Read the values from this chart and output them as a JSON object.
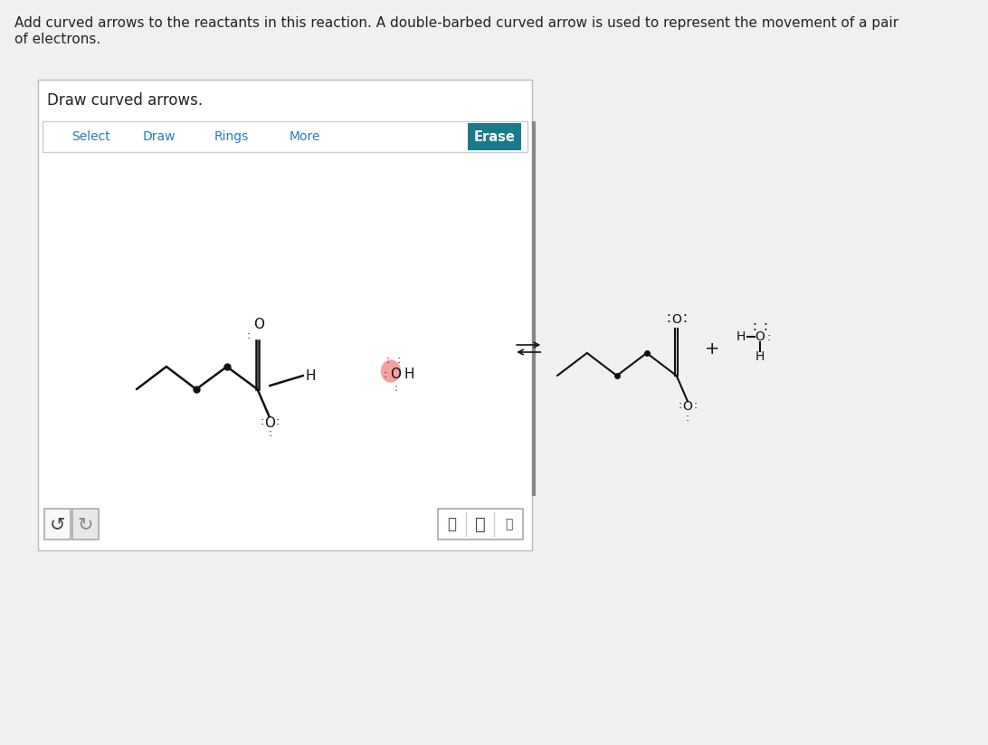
{
  "bg_color": "#f0f0f0",
  "panel_bg": "#ffffff",
  "header_text_line1": "Add curved arrows to the reactants in this reaction. A double-barbed curved arrow is used to represent the movement of a pair",
  "header_text_line2": "of electrons.",
  "draw_label": "Draw curved arrows.",
  "toolbar_items": [
    "Select",
    "Draw",
    "Rings",
    "More"
  ],
  "erase_text": "Erase",
  "erase_bg": "#1a7a8a",
  "toolbar_color": "#2a7ab5",
  "mol_color": "#111111",
  "pink_color": "#f5a0a0"
}
